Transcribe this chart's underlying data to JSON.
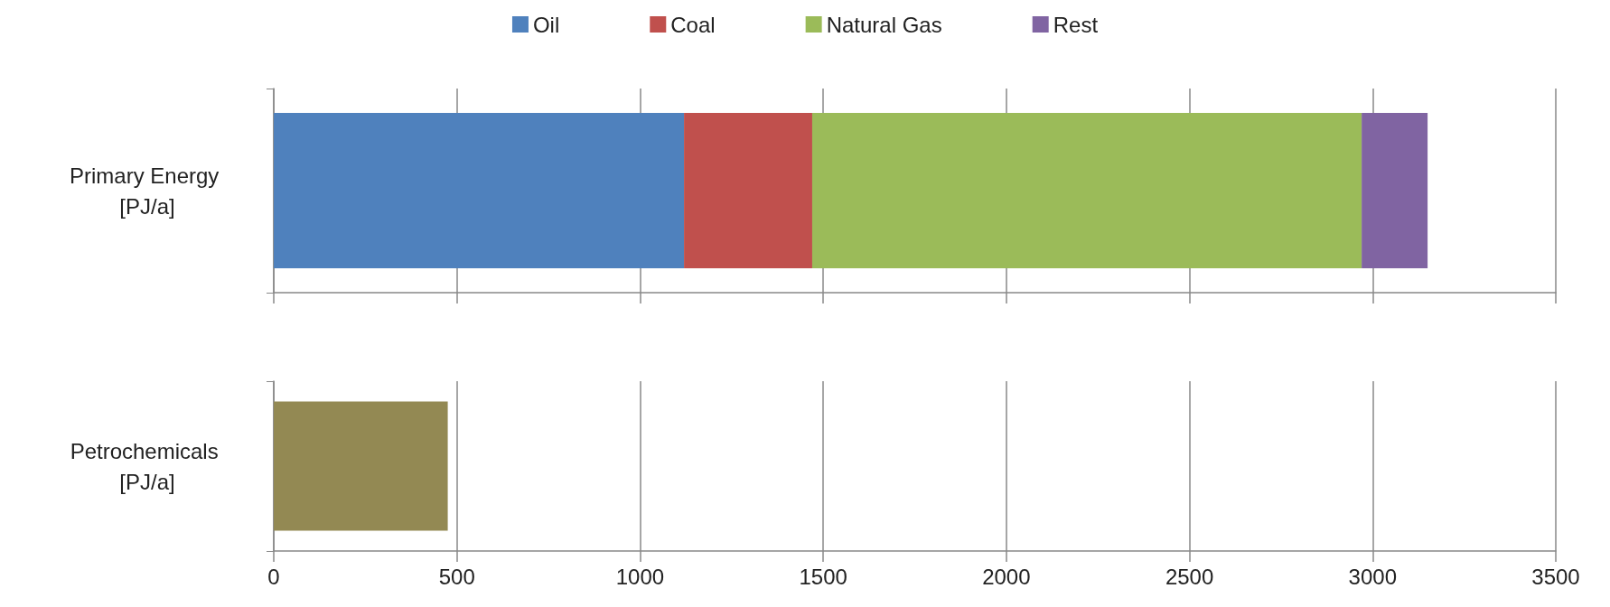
{
  "chart_data": [
    {
      "type": "bar",
      "orientation": "horizontal",
      "stacked": true,
      "categories": [
        "Primary Energy [PJ/a]"
      ],
      "series": [
        {
          "name": "Oil",
          "color": "#4f81bd",
          "values": [
            1120
          ]
        },
        {
          "name": "Coal",
          "color": "#c0504d",
          "values": [
            350
          ]
        },
        {
          "name": "Natural Gas",
          "color": "#9bbb59",
          "values": [
            1500
          ]
        },
        {
          "name": "Rest",
          "color": "#8064a2",
          "values": [
            180
          ]
        }
      ],
      "xlim": [
        0,
        3500
      ],
      "xticks": [
        0,
        500,
        1000,
        1500,
        2000,
        2500,
        3000,
        3500
      ],
      "grid": "x",
      "legend": "top",
      "tick_labels": "y"
    },
    {
      "type": "bar",
      "orientation": "horizontal",
      "categories": [
        "Petrochemicals [PJ/a]"
      ],
      "series": [
        {
          "color": "#938953",
          "values": [
            475
          ]
        }
      ],
      "xlim": [
        0,
        3500
      ],
      "xticks": [
        0,
        500,
        1000,
        1500,
        2000,
        2500,
        3000,
        3500
      ],
      "grid": "x"
    }
  ]
}
